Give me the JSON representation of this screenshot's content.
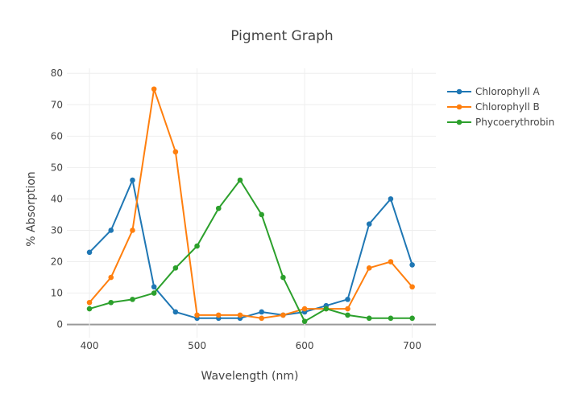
{
  "chart_data": {
    "type": "line",
    "title": "Pigment Graph",
    "xlabel": "Wavelength (nm)",
    "ylabel": "% Absorption",
    "x": [
      400,
      420,
      440,
      460,
      480,
      500,
      520,
      540,
      560,
      580,
      600,
      620,
      640,
      660,
      680,
      700
    ],
    "xticks": [
      400,
      500,
      600,
      700
    ],
    "yticks": [
      0,
      10,
      20,
      30,
      40,
      50,
      60,
      70,
      80
    ],
    "xlim": [
      379,
      722
    ],
    "ylim": [
      -4.2,
      81.6
    ],
    "grid": true,
    "legend_position": "top-right",
    "series": [
      {
        "name": "Chlorophyll A",
        "color": "#1f77b4",
        "values": [
          23,
          30,
          46,
          12,
          4,
          2,
          2,
          2,
          4,
          3,
          4,
          6,
          8,
          32,
          40,
          19
        ]
      },
      {
        "name": "Chlorophyll B",
        "color": "#ff7f0e",
        "values": [
          7,
          15,
          30,
          75,
          55,
          3,
          3,
          3,
          2,
          3,
          5,
          5,
          5,
          18,
          20,
          12
        ]
      },
      {
        "name": "Phycoerythrobin",
        "color": "#2ca02c",
        "values": [
          5,
          7,
          8,
          10,
          18,
          25,
          37,
          46,
          35,
          15,
          1,
          5,
          3,
          2,
          2,
          2
        ]
      }
    ]
  }
}
